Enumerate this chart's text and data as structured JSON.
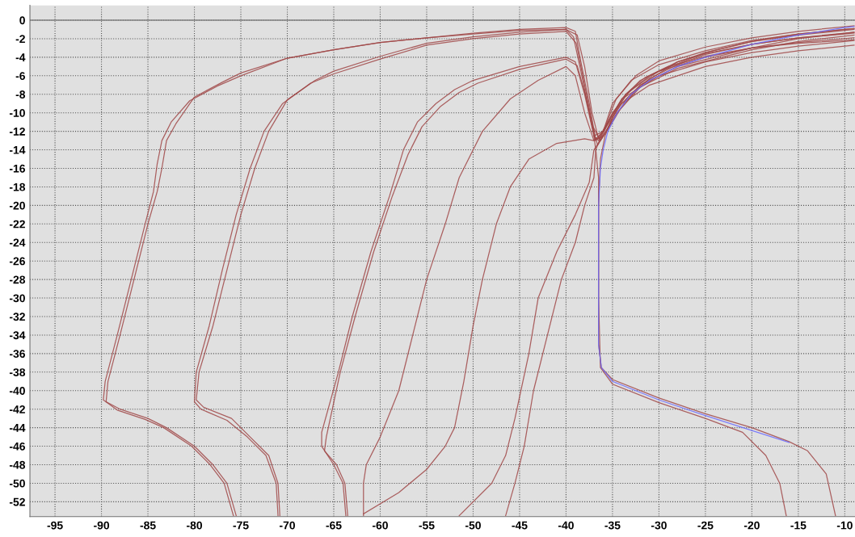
{
  "chart_data": {
    "type": "line",
    "xlim": [
      -97.7,
      -8.9
    ],
    "ylim": [
      -53.6,
      1.6
    ],
    "xticks": [
      -95,
      -90,
      -85,
      -80,
      -75,
      -70,
      -65,
      -60,
      -55,
      -50,
      -45,
      -40,
      -35,
      -30,
      -25,
      -20,
      -15,
      -10
    ],
    "yticks": [
      0,
      -2,
      -4,
      -6,
      -8,
      -10,
      -12,
      -14,
      -16,
      -18,
      -20,
      -22,
      -24,
      -26,
      -28,
      -30,
      -32,
      -34,
      -36,
      -38,
      -40,
      -42,
      -44,
      -46,
      -48,
      -50,
      -52
    ],
    "grid": true,
    "line_style": "solid",
    "marker": "none",
    "legend": false,
    "ref_lines": [
      {
        "axis": "y",
        "value": 0,
        "color": "#808080"
      }
    ],
    "series": [
      {
        "color": "#a04848",
        "x": [
          -75.5,
          -76.5,
          -78,
          -80,
          -83,
          -85,
          -88,
          -89.5,
          -89.3,
          -88,
          -87,
          -85,
          -84,
          -83.5,
          -83,
          -82,
          -80,
          -77,
          -75,
          -70,
          -65,
          -60,
          -55,
          -50,
          -45,
          -40,
          -39,
          -38.5,
          -37.5,
          -36.8,
          -36,
          -35,
          -33,
          -30,
          -25,
          -20,
          -15,
          -10,
          -9
        ],
        "values": [
          -53.5,
          -50,
          -48,
          -46,
          -44,
          -43,
          -42,
          -41.2,
          -39,
          -34,
          -30,
          -22,
          -18.5,
          -16,
          -13,
          -11.2,
          -8.3,
          -6.7,
          -5.7,
          -4.1,
          -3.2,
          -2.4,
          -1.9,
          -1.4,
          -1.0,
          -0.8,
          -1.2,
          -4,
          -9,
          -13,
          -12,
          -9,
          -6.5,
          -4.8,
          -3.3,
          -2.2,
          -1.5,
          -1.0,
          -0.9
        ]
      },
      {
        "color": "#a04848",
        "x": [
          -75.8,
          -76.8,
          -78.3,
          -80.3,
          -83.3,
          -85.3,
          -88.3,
          -89.8,
          -89.6,
          -88.3,
          -87.3,
          -85.3,
          -84.4,
          -84,
          -83.5,
          -82.5,
          -80.5,
          -77.5,
          -75,
          -70,
          -65,
          -60,
          -55,
          -50,
          -45,
          -40,
          -38.8,
          -38,
          -37.2,
          -36.5,
          -35.8,
          -34.6,
          -32.5,
          -30,
          -25,
          -20,
          -15,
          -10,
          -9
        ],
        "values": [
          -53.5,
          -50,
          -48,
          -46,
          -44,
          -43.1,
          -42.1,
          -41,
          -39,
          -34,
          -30,
          -22,
          -18.5,
          -15.5,
          -13,
          -11,
          -8.7,
          -7.1,
          -6,
          -4.1,
          -3.2,
          -2.4,
          -1.9,
          -1.5,
          -1.1,
          -1.0,
          -1.6,
          -5,
          -10,
          -12.8,
          -11.5,
          -8.5,
          -6,
          -4.4,
          -2.9,
          -1.9,
          -1.2,
          -0.7,
          -0.6
        ]
      },
      {
        "color": "#a04848",
        "x": [
          -70.8,
          -71,
          -72,
          -74,
          -76,
          -79,
          -79.8,
          -79.5,
          -78,
          -76.5,
          -75,
          -73.5,
          -72,
          -70,
          -67,
          -65,
          -60,
          -55,
          -50,
          -45,
          -40,
          -39.2,
          -38.3,
          -37.3,
          -36.6,
          -35.8,
          -34.5,
          -32,
          -28,
          -25,
          -20,
          -15,
          -10,
          -9
        ],
        "values": [
          -53.5,
          -50,
          -47,
          -45,
          -43,
          -41.8,
          -41,
          -38,
          -33,
          -27,
          -21,
          -16,
          -12,
          -8.6,
          -6.5,
          -5.5,
          -3.9,
          -2.5,
          -1.8,
          -1.3,
          -1.0,
          -1.8,
          -6,
          -11,
          -13.5,
          -12.2,
          -9.5,
          -7,
          -4.5,
          -3.5,
          -2.3,
          -1.6,
          -1.1,
          -1.0
        ]
      },
      {
        "color": "#a04848",
        "x": [
          -71,
          -71.2,
          -72.3,
          -74.3,
          -76.5,
          -79.3,
          -80,
          -79.8,
          -78.4,
          -77,
          -75.5,
          -74,
          -72.5,
          -70.5,
          -67.5,
          -65,
          -60,
          -55,
          -50,
          -45,
          -40,
          -38.9,
          -38,
          -37.1,
          -36.3,
          -35.3,
          -33.5,
          -31,
          -28,
          -25,
          -20,
          -15,
          -10,
          -9
        ],
        "values": [
          -53.5,
          -50,
          -47,
          -45,
          -43.2,
          -42,
          -41.2,
          -38,
          -33,
          -27,
          -21,
          -16,
          -12,
          -9,
          -6.8,
          -5.8,
          -4.2,
          -2.7,
          -2.0,
          -1.5,
          -1.2,
          -2.5,
          -7,
          -11.5,
          -13,
          -11.5,
          -8.5,
          -6.3,
          -4.8,
          -3.7,
          -2.6,
          -1.9,
          -1.4,
          -1.3
        ]
      },
      {
        "color": "#a04848",
        "x": [
          -63.7,
          -64,
          -65,
          -66.3,
          -66.3,
          -64.5,
          -63,
          -61,
          -59,
          -57.5,
          -56,
          -54,
          -52,
          -50,
          -45,
          -40,
          -39,
          -38,
          -37,
          -36.5,
          -35.5,
          -34,
          -32,
          -30,
          -25,
          -20,
          -15,
          -10,
          -9
        ],
        "values": [
          -53.5,
          -50,
          -48,
          -46,
          -44.5,
          -38,
          -32,
          -25,
          -19,
          -14,
          -11,
          -9,
          -7.5,
          -6.5,
          -5,
          -4,
          -4.5,
          -8,
          -12.5,
          -13,
          -11,
          -8.5,
          -6.5,
          -5.5,
          -4,
          -3,
          -2.5,
          -2.2,
          -2.1
        ]
      },
      {
        "color": "#a04848",
        "x": [
          -63.5,
          -63.8,
          -64.7,
          -66,
          -65.8,
          -64.3,
          -62.7,
          -60.7,
          -58.7,
          -57,
          -55.5,
          -53.5,
          -51.5,
          -49.5,
          -45,
          -40,
          -38.8,
          -37.8,
          -36.9,
          -36.2,
          -35.2,
          -33.6,
          -31.5,
          -29,
          -25,
          -20,
          -15,
          -10,
          -9
        ],
        "values": [
          -53.5,
          -50,
          -48,
          -46.5,
          -45,
          -38,
          -32,
          -25,
          -19,
          -14.5,
          -11.5,
          -9.3,
          -7.8,
          -6.8,
          -5.3,
          -4.2,
          -4.9,
          -8.5,
          -12.8,
          -12.7,
          -10.5,
          -8,
          -6.2,
          -5.0,
          -3.9,
          -3.0,
          -2.4,
          -2.0,
          -1.9
        ]
      },
      {
        "color": "#a04848",
        "x": [
          -61.8,
          -61.8,
          -61.5,
          -60,
          -58,
          -56.5,
          -55,
          -53,
          -51.5,
          -49,
          -46,
          -43,
          -40,
          -39,
          -38,
          -37,
          -36,
          -34,
          -31,
          -25,
          -20,
          -15,
          -10,
          -9
        ],
        "values": [
          -53.5,
          -50,
          -48,
          -45,
          -40,
          -34,
          -28,
          -22,
          -17,
          -12,
          -8.5,
          -6.5,
          -5,
          -6,
          -10,
          -13,
          -12,
          -9,
          -7,
          -5,
          -4,
          -3.3,
          -2.8,
          -2.7
        ]
      },
      {
        "color": "#a04848",
        "x": [
          -61.8,
          -58,
          -55,
          -53,
          -52,
          -51,
          -50,
          -49,
          -47.5,
          -46,
          -44,
          -41,
          -38,
          -37,
          -36,
          -34.5,
          -32,
          -28,
          -20,
          -15,
          -9
        ],
        "values": [
          -53.3,
          -51,
          -48.5,
          -46,
          -44,
          -39,
          -33,
          -28,
          -22,
          -18,
          -15,
          -13.3,
          -12.8,
          -13,
          -12.5,
          -10,
          -7.2,
          -5.2,
          -3.2,
          -2.3,
          -1.6
        ]
      },
      {
        "color": "#a04848",
        "x": [
          -51.5,
          -48,
          -46.5,
          -45.5,
          -44,
          -43,
          -41,
          -39,
          -37.5,
          -37,
          -36,
          -34.5,
          -32,
          -28,
          -20,
          -15,
          -9
        ],
        "values": [
          -53.5,
          -50,
          -47,
          -43,
          -36,
          -30,
          -25,
          -21,
          -17.5,
          -14,
          -12.5,
          -10,
          -7,
          -5,
          -3,
          -2,
          -1.3
        ]
      },
      {
        "color": "#a04848",
        "x": [
          -46.5,
          -45.5,
          -44.5,
          -43.5,
          -42,
          -40.5,
          -39,
          -38,
          -37,
          -36.8,
          -36,
          -34,
          -30,
          -25,
          -20,
          -15,
          -10,
          -9
        ],
        "values": [
          -53.5,
          -50,
          -46,
          -40,
          -34,
          -28,
          -24,
          -20,
          -17,
          -14,
          -12,
          -8.5,
          -6,
          -4.5,
          -3.5,
          -2.8,
          -2.3,
          -2.2
        ]
      },
      {
        "color": "#a04848",
        "x": [
          -16.3,
          -17,
          -18.5,
          -21,
          -25,
          -30,
          -35,
          -36.3,
          -36.5,
          -36.5,
          -36.8,
          -37,
          -36,
          -35,
          -33,
          -30,
          -25,
          -20,
          -15,
          -10,
          -9
        ],
        "values": [
          -53.5,
          -50,
          -47,
          -44.5,
          -43,
          -41.3,
          -39.3,
          -37.5,
          -30,
          -17,
          -14,
          -12.5,
          -12,
          -10,
          -7.5,
          -5.5,
          -3.5,
          -2.3,
          -1.5,
          -1.0,
          -0.9
        ]
      },
      {
        "color": "#a04848",
        "x": [
          -11,
          -12,
          -14,
          -16,
          -20,
          -25,
          -30,
          -35,
          -36.2,
          -36.5,
          -36.5,
          -36.3,
          -35.8,
          -35,
          -33.5,
          -31,
          -28,
          -25,
          -20,
          -15,
          -10,
          -9
        ],
        "values": [
          -53.5,
          -49,
          -46.5,
          -45.5,
          -44,
          -42.5,
          -40.8,
          -38.8,
          -37.5,
          -35,
          -20,
          -15,
          -12.5,
          -10.5,
          -8,
          -6,
          -4.5,
          -3.6,
          -2.6,
          -1.9,
          -1.5,
          -1.4
        ]
      },
      {
        "color": "#6a6aff",
        "x": [
          -16,
          -20,
          -25,
          -30,
          -35,
          -36.2,
          -36.5,
          -36.5,
          -36.3,
          -36,
          -35.5,
          -34.5,
          -33,
          -31,
          -28,
          -25,
          -20,
          -15,
          -10,
          -9
        ],
        "values": [
          -45.6,
          -44.3,
          -42.7,
          -41,
          -39,
          -37.5,
          -35,
          -20,
          -16,
          -14,
          -12,
          -10,
          -8,
          -6.5,
          -5,
          -4,
          -2.6,
          -1.6,
          -0.8,
          -0.7
        ]
      }
    ]
  }
}
